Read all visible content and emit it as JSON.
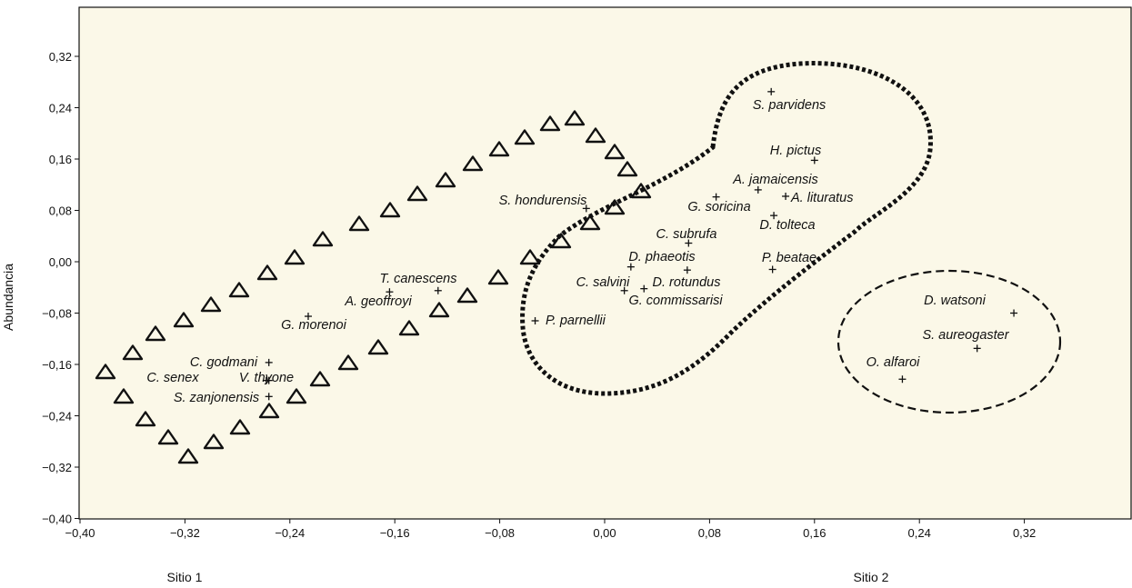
{
  "chart_data": {
    "type": "scatter",
    "title": "",
    "xlabel_left": "Sitio 1",
    "xlabel_right": "Sitio 2",
    "ylabel": "Abundancia",
    "xlim": [
      -0.4,
      0.4
    ],
    "ylim": [
      -0.4,
      0.4
    ],
    "grid": false,
    "background": "#fbf8e8",
    "x_ticks": [
      {
        "value": -0.4,
        "label": "−0,40"
      },
      {
        "value": -0.32,
        "label": "−0,32"
      },
      {
        "value": -0.24,
        "label": "−0,24"
      },
      {
        "value": -0.16,
        "label": "−0,16"
      },
      {
        "value": -0.08,
        "label": "−0,08"
      },
      {
        "value": 0.0,
        "label": "0,00"
      },
      {
        "value": 0.08,
        "label": "0,08"
      },
      {
        "value": 0.16,
        "label": "0,16"
      },
      {
        "value": 0.24,
        "label": "0,24"
      },
      {
        "value": 0.32,
        "label": "0,32"
      }
    ],
    "y_ticks": [
      {
        "value": 0.32,
        "label": "0,32"
      },
      {
        "value": 0.24,
        "label": "0,24"
      },
      {
        "value": 0.16,
        "label": "0,16"
      },
      {
        "value": 0.08,
        "label": "0,08"
      },
      {
        "value": 0.0,
        "label": "0,00"
      },
      {
        "value": -0.08,
        "label": "−0,08"
      },
      {
        "value": -0.16,
        "label": "−0,16"
      },
      {
        "value": -0.24,
        "label": "−0,24"
      },
      {
        "value": -0.32,
        "label": "−0,32"
      },
      {
        "value": -0.4,
        "label": "−0,40"
      }
    ],
    "points": [
      {
        "name": "S. parvidens",
        "x": 0.127,
        "y": 0.265
      },
      {
        "name": "H. pictus",
        "x": 0.16,
        "y": 0.158
      },
      {
        "name": "A. jamaicensis",
        "x": 0.117,
        "y": 0.112
      },
      {
        "name": "A. lituratus",
        "x": 0.138,
        "y": 0.102
      },
      {
        "name": "G. soricina",
        "x": 0.085,
        "y": 0.101
      },
      {
        "name": "D. tolteca",
        "x": 0.129,
        "y": 0.072
      },
      {
        "name": "S. hondurensis",
        "x": -0.014,
        "y": 0.083
      },
      {
        "name": "C. subrufa",
        "x": 0.064,
        "y": 0.029
      },
      {
        "name": "D. phaeotis",
        "x": 0.02,
        "y": -0.008
      },
      {
        "name": "D. rotundus",
        "x": 0.063,
        "y": -0.013
      },
      {
        "name": "P. beatae",
        "x": 0.128,
        "y": -0.012
      },
      {
        "name": "C. salvini",
        "x": 0.015,
        "y": -0.045
      },
      {
        "name": "G. commissarisi",
        "x": 0.03,
        "y": -0.042
      },
      {
        "name": "P. parnellii",
        "x": -0.053,
        "y": -0.092
      },
      {
        "name": "T. canescens",
        "x": -0.127,
        "y": -0.045
      },
      {
        "name": "A. geoffroyi",
        "x": -0.164,
        "y": -0.047
      },
      {
        "name": "G. morenoi",
        "x": -0.226,
        "y": -0.085
      },
      {
        "name": "C. godmani",
        "x": -0.256,
        "y": -0.157
      },
      {
        "name": "C. senex",
        "x": -0.258,
        "y": -0.185
      },
      {
        "name": "V. thyone",
        "x": -0.256,
        "y": -0.185
      },
      {
        "name": "S. zanjonensis",
        "x": -0.256,
        "y": -0.21
      },
      {
        "name": "D. watsoni",
        "x": 0.312,
        "y": -0.08
      },
      {
        "name": "S. aureogaster",
        "x": 0.284,
        "y": -0.135
      },
      {
        "name": "O. alfaroi",
        "x": 0.227,
        "y": -0.183
      }
    ]
  }
}
